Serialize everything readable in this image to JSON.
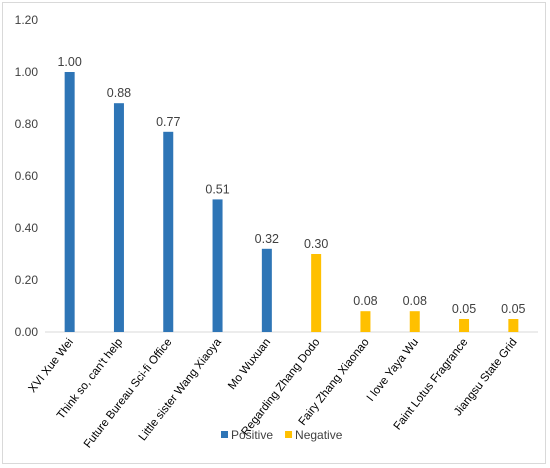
{
  "chart_data": {
    "type": "bar",
    "categories": [
      "XVI Xue Wei",
      "Think so, can't help",
      "Future Bureau Sci-fi Office",
      "Little sister Wang Xiaoya",
      "Mo Wuxuan",
      "Regarding Zhang Dodo",
      "Fairy Zhang Xiaonao",
      "I love Yaya Wu",
      "Faint Lotus Fragrance",
      "Jiangsu State Grid"
    ],
    "series": [
      {
        "name": "Positive",
        "color": "#2e75b6",
        "values": [
          1.0,
          0.88,
          0.77,
          0.51,
          0.32,
          null,
          null,
          null,
          null,
          null
        ]
      },
      {
        "name": "Negative",
        "color": "#ffc000",
        "values": [
          null,
          null,
          null,
          null,
          null,
          0.3,
          0.08,
          0.08,
          0.05,
          0.05
        ]
      }
    ],
    "data_labels": [
      "1.00",
      "0.88",
      "0.77",
      "0.51",
      "0.32",
      "0.30",
      "0.08",
      "0.08",
      "0.05",
      "0.05"
    ],
    "y_ticks": [
      "0.00",
      "0.20",
      "0.40",
      "0.60",
      "0.80",
      "1.00",
      "1.20"
    ],
    "ylim": [
      0,
      1.2
    ],
    "grid": false,
    "legend_position": "bottom",
    "title": "",
    "xlabel": "",
    "ylabel": ""
  }
}
